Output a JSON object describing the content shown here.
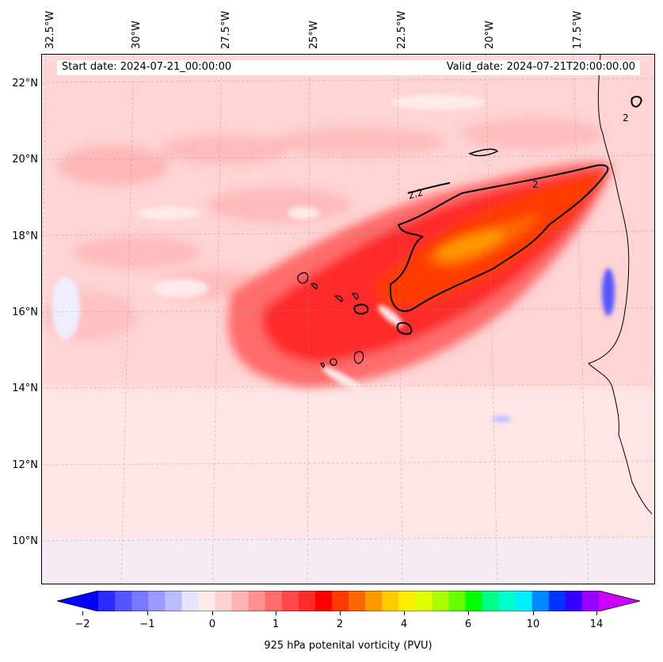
{
  "header": {
    "start_date": "Start date: 2024-07-21_00:00:00",
    "valid_date": "Valid_date: 2024-07-21T20:00:00.00"
  },
  "axes": {
    "lon_labels": [
      "32.5°W",
      "30°W",
      "27.5°W",
      "25°W",
      "22.5°W",
      "20°W",
      "17.5°W"
    ],
    "lat_labels": [
      "22°N",
      "20°N",
      "18°N",
      "16°N",
      "14°N",
      "12°N",
      "10°N"
    ]
  },
  "contour": {
    "level_label": "2",
    "level_label_alt": "2.2"
  },
  "colorbar": {
    "label": "925 hPa potenital vorticity (PVU)",
    "ticks": [
      "−2",
      "−1",
      "0",
      "1",
      "2",
      "4",
      "6",
      "10",
      "14"
    ],
    "colors": [
      "#0000ff",
      "#2a2aff",
      "#5555ff",
      "#7777ff",
      "#9999ff",
      "#bbbbff",
      "#e4e4ff",
      "#ffeaea",
      "#ffd2d2",
      "#ffb4b4",
      "#ff9090",
      "#ff6c6c",
      "#ff4848",
      "#ff2a2a",
      "#ff0000",
      "#ff3a00",
      "#ff6600",
      "#ff9900",
      "#ffcc00",
      "#ffee00",
      "#ddff00",
      "#aaff00",
      "#66ff00",
      "#00ff00",
      "#00ff88",
      "#00ffcc",
      "#00eeff",
      "#0088ff",
      "#0033ff",
      "#3300ff",
      "#9900ff",
      "#cc00ff"
    ]
  },
  "colors": {
    "background_field": "#ffe6e6",
    "strong": "#ff3a00",
    "core": "#ff6600",
    "coast": "#000000"
  }
}
